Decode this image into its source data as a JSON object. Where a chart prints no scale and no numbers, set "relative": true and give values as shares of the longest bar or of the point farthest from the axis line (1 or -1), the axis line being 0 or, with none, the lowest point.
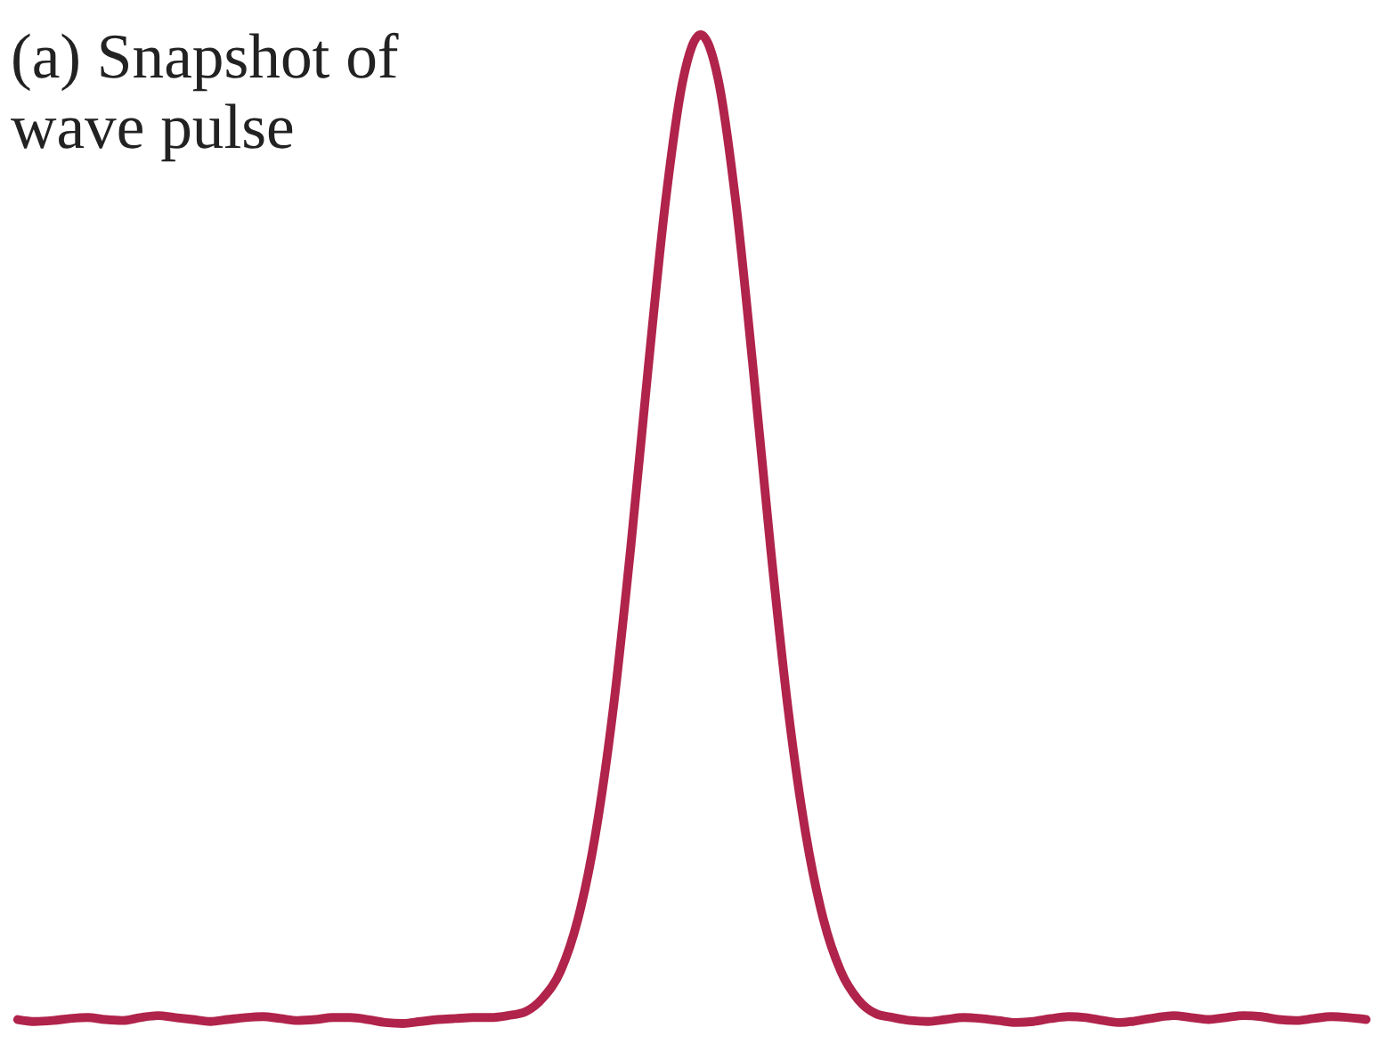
{
  "chart_data": {
    "type": "line",
    "relative": true,
    "title": "(a) Snapshot of\nwave pulse",
    "categories": [
      null,
      null,
      null,
      null,
      null,
      null,
      null,
      null,
      null,
      null,
      null,
      null,
      null,
      null,
      null,
      null,
      null,
      null,
      null,
      null,
      null,
      null,
      null,
      null,
      null,
      null,
      null,
      null,
      null,
      null,
      null,
      null,
      null,
      null,
      null,
      null,
      null,
      null,
      null,
      null,
      null,
      null,
      null,
      null,
      null,
      null,
      null,
      null,
      null,
      null,
      null,
      null,
      null,
      null,
      null,
      null,
      null,
      null,
      null,
      null,
      null,
      null,
      null,
      null,
      null,
      null,
      null,
      null,
      null,
      null,
      null,
      null,
      null,
      null,
      null,
      null,
      null,
      null
    ],
    "series": [
      {
        "color": "#b0234a",
        "values": [
          0.004,
          0.002,
          0.003,
          0.005,
          0.006,
          0.004,
          0.003,
          0.006,
          0.008,
          0.006,
          0.004,
          0.002,
          0.004,
          0.006,
          0.007,
          0.005,
          0.003,
          0.004,
          0.006,
          0.006,
          0.004,
          0.001,
          0.0,
          0.002,
          0.004,
          0.005,
          0.006,
          0.006,
          0.008,
          0.012,
          0.026,
          0.053,
          0.106,
          0.192,
          0.317,
          0.48,
          0.662,
          0.832,
          0.955,
          1,
          0.955,
          0.832,
          0.662,
          0.48,
          0.317,
          0.192,
          0.106,
          0.053,
          0.024,
          0.01,
          0.006,
          0.003,
          0.002,
          0.004,
          0.006,
          0.005,
          0.003,
          0.001,
          0.002,
          0.005,
          0.007,
          0.006,
          0.003,
          0.001,
          0.003,
          0.006,
          0.008,
          0.006,
          0.004,
          0.006,
          0.008,
          0.007,
          0.004,
          0.003,
          0.005,
          0.007,
          0.006,
          0.004
        ]
      }
    ],
    "marker": "none",
    "line_style": "solid"
  }
}
